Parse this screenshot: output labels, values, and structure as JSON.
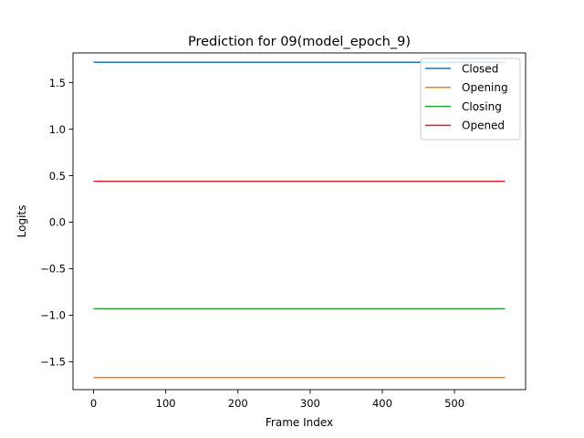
{
  "chart_data": {
    "type": "line",
    "title": "Prediction for 09(model_epoch_9)",
    "xlabel": "Frame Index",
    "ylabel": "Logits",
    "xlim": [
      -28.5,
      598.5
    ],
    "ylim": [
      -1.8,
      1.82
    ],
    "xticks": [
      0,
      100,
      200,
      300,
      400,
      500
    ],
    "xtick_labels": [
      "0",
      "100",
      "200",
      "300",
      "400",
      "500"
    ],
    "yticks": [
      -1.5,
      -1.0,
      -0.5,
      0.0,
      0.5,
      1.0,
      1.5
    ],
    "ytick_labels": [
      "−1.5",
      "−1.0",
      "−0.5",
      "0.0",
      "0.5",
      "1.0",
      "1.5"
    ],
    "grid": false,
    "legend_position": "top-right",
    "x": [
      0,
      570
    ],
    "series": [
      {
        "name": "Closed",
        "color": "#1f77b4",
        "values": [
          1.72,
          1.72
        ]
      },
      {
        "name": "Opening",
        "color": "#ff7f0e",
        "values": [
          -1.67,
          -1.67
        ]
      },
      {
        "name": "Closing",
        "color": "#2ca02c",
        "values": [
          -0.93,
          -0.93
        ]
      },
      {
        "name": "Opened",
        "color": "#d62728",
        "values": [
          0.44,
          0.44
        ]
      }
    ]
  }
}
